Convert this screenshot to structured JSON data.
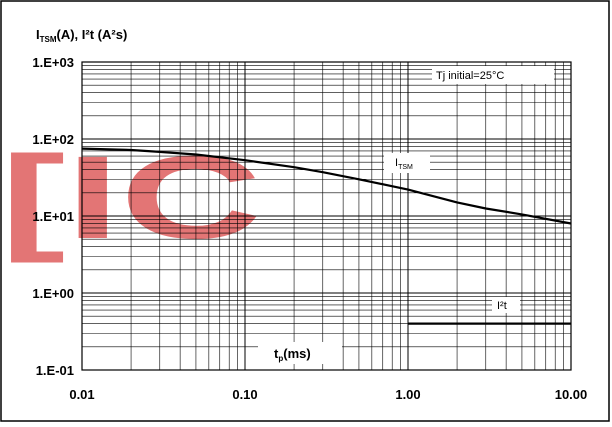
{
  "chart_data": {
    "type": "line",
    "title": "",
    "ylabel_main": "I",
    "ylabel_sub": "TSM",
    "ylabel_rest": "(A), I²t (A²s)",
    "xlabel_main": "t",
    "xlabel_sub": "p",
    "xlabel_rest": "(ms)",
    "xscale": "log",
    "yscale": "log",
    "xlim": [
      0.01,
      10
    ],
    "ylim": [
      0.1,
      1000
    ],
    "x_ticks": [
      {
        "value": 0.01,
        "label": "0.01"
      },
      {
        "value": 0.1,
        "label": "0.10"
      },
      {
        "value": 1,
        "label": "1.00"
      },
      {
        "value": 10,
        "label": "10.00"
      }
    ],
    "y_ticks": [
      {
        "value": 1000,
        "label": "1.E+03"
      },
      {
        "value": 100,
        "label": "1.E+02"
      },
      {
        "value": 10,
        "label": "1.E+01"
      },
      {
        "value": 1,
        "label": "1.E+00"
      },
      {
        "value": 0.1,
        "label": "1.E-01"
      }
    ],
    "grid": true,
    "annotation": "Tj initial=25°C",
    "watermark": "[IC",
    "series": [
      {
        "name_main": "I",
        "name_sub": "TSM",
        "color": "#000000",
        "x": [
          0.01,
          0.02,
          0.03,
          0.05,
          0.1,
          0.2,
          0.3,
          0.5,
          1,
          2,
          3,
          5,
          10
        ],
        "y": [
          75,
          72,
          68,
          63,
          53,
          43,
          37,
          30,
          22,
          15,
          12.5,
          10.5,
          8
        ]
      },
      {
        "name_main": "I²t",
        "name_sub": "",
        "color": "#000000",
        "x": [
          1,
          10
        ],
        "y": [
          0.4,
          0.4
        ]
      }
    ]
  }
}
